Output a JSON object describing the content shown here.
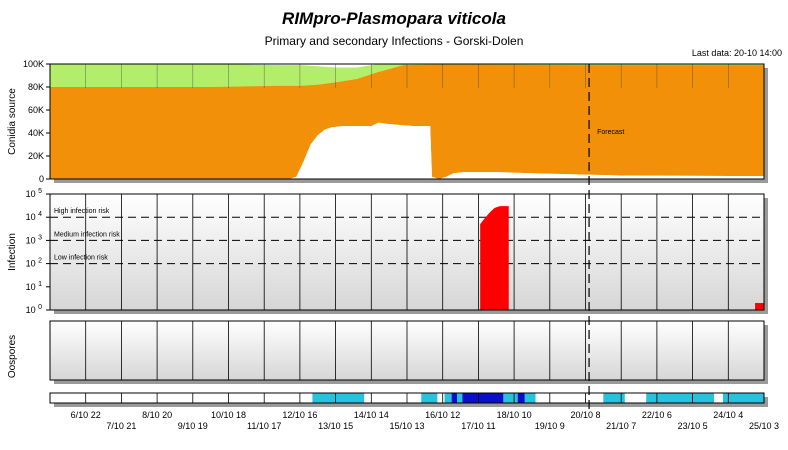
{
  "title": "RIMpro-Plasmopara viticola",
  "subtitle": "Primary and secondary Infections - Gorski-Dolen",
  "last_data": "Last data: 20-10 14:00",
  "forecast_label": "Forecast",
  "colors": {
    "uninfected": "#ffffff",
    "sporulating": "#f29109",
    "ripe": "#b3ee6a",
    "infection": "#ff0000",
    "leaf_wet_light": "#27c2dd",
    "leaf_wet_dark": "#0a0fcc"
  },
  "chart_data": [
    {
      "type": "area",
      "ylabel": "Conidia source",
      "ylim": [
        0,
        100000
      ],
      "yticks": [
        "0",
        "20K",
        "40K",
        "60K",
        "80K",
        "100K"
      ],
      "x_unit": "days from 6/10 00:00",
      "series": [
        {
          "name": "white",
          "points": [
            [
              0,
              0
            ],
            [
              4.5,
              0
            ],
            [
              6.4,
              0
            ],
            [
              6.7,
              0
            ],
            [
              6.9,
              2000
            ],
            [
              7.1,
              15000
            ],
            [
              7.3,
              30000
            ],
            [
              7.5,
              38000
            ],
            [
              7.7,
              43000
            ],
            [
              7.9,
              45000
            ],
            [
              8.2,
              46000
            ],
            [
              9.0,
              46000
            ],
            [
              9.2,
              49000
            ],
            [
              9.4,
              48000
            ],
            [
              9.8,
              47000
            ],
            [
              10.2,
              46000
            ],
            [
              10.5,
              46000
            ],
            [
              10.65,
              46000
            ],
            [
              10.7,
              2000
            ],
            [
              10.9,
              0
            ],
            [
              11.1,
              2000
            ],
            [
              11.3,
              5000
            ],
            [
              11.6,
              6000
            ],
            [
              12.5,
              6000
            ],
            [
              13.5,
              5000
            ],
            [
              14.7,
              4000
            ],
            [
              16,
              3000
            ],
            [
              20,
              2500
            ]
          ]
        },
        {
          "name": "orange",
          "points": [
            [
              0,
              80000
            ],
            [
              4.5,
              80000
            ],
            [
              6.4,
              81000
            ],
            [
              7.0,
              81000
            ],
            [
              7.5,
              82000
            ],
            [
              8.0,
              84000
            ],
            [
              8.6,
              87000
            ],
            [
              9.2,
              93000
            ],
            [
              9.9,
              99000
            ],
            [
              10.8,
              99500
            ],
            [
              12,
              99500
            ],
            [
              14.7,
              99000
            ],
            [
              16,
              99000
            ],
            [
              20,
              99000
            ]
          ]
        },
        {
          "name": "green",
          "points": [
            [
              0,
              100000
            ],
            [
              4.5,
              100000
            ],
            [
              6.4,
              99000
            ],
            [
              7.0,
              99000
            ],
            [
              7.5,
              98000
            ],
            [
              8.0,
              97000
            ],
            [
              8.6,
              97000
            ],
            [
              9.2,
              100000
            ],
            [
              20,
              100000
            ]
          ]
        }
      ]
    },
    {
      "type": "bar",
      "ylabel": "Infection",
      "y_scale": "log",
      "ylim": [
        1,
        100000
      ],
      "yticks": [
        "10^0",
        "10^1",
        "10^2",
        "10^3",
        "10^4",
        "10^5"
      ],
      "thresholds": [
        {
          "label": "High infection risk",
          "value": 10000
        },
        {
          "label": "Medium infection risk",
          "value": 1000
        },
        {
          "label": "Low infection risk",
          "value": 100
        }
      ],
      "events": [
        {
          "x_start": 12.05,
          "x_end": 12.85,
          "points": [
            [
              12.05,
              5000
            ],
            [
              12.15,
              8000
            ],
            [
              12.3,
              15000
            ],
            [
              12.45,
              25000
            ],
            [
              12.6,
              30000
            ],
            [
              12.85,
              30000
            ]
          ]
        },
        {
          "x_start": 19.75,
          "x_end": 20.0,
          "points": [
            [
              19.75,
              2
            ],
            [
              20.0,
              2
            ]
          ]
        }
      ]
    },
    {
      "type": "area",
      "ylabel": "Oospores",
      "series": []
    },
    {
      "type": "heatmap",
      "ylabel": "",
      "cells": [
        {
          "x_start": 7.35,
          "x_end": 8.8,
          "level": "light"
        },
        {
          "x_start": 10.4,
          "x_end": 10.85,
          "level": "light"
        },
        {
          "x_start": 11.05,
          "x_end": 11.25,
          "level": "light"
        },
        {
          "x_start": 11.25,
          "x_end": 11.4,
          "level": "dark"
        },
        {
          "x_start": 11.4,
          "x_end": 11.55,
          "level": "light"
        },
        {
          "x_start": 11.55,
          "x_end": 12.7,
          "level": "dark"
        },
        {
          "x_start": 12.7,
          "x_end": 13.1,
          "level": "light"
        },
        {
          "x_start": 13.1,
          "x_end": 13.3,
          "level": "dark"
        },
        {
          "x_start": 13.3,
          "x_end": 13.6,
          "level": "light"
        },
        {
          "x_start": 15.5,
          "x_end": 16.1,
          "level": "light"
        },
        {
          "x_start": 16.7,
          "x_end": 18.6,
          "level": "light"
        },
        {
          "x_start": 18.85,
          "x_end": 20.0,
          "level": "light"
        }
      ]
    }
  ],
  "x_axis": {
    "domain": [
      0,
      20
    ],
    "forecast_at": 15.1,
    "ticks_upper": [
      "6/10 22",
      "8/10 20",
      "10/10 18",
      "12/10 16",
      "14/10 14",
      "16/10 12",
      "18/10 10",
      "20/10 8",
      "22/10 6",
      "24/10 4"
    ],
    "ticks_lower": [
      "7/10 21",
      "9/10 19",
      "11/10 17",
      "13/10 15",
      "15/10 13",
      "17/10 11",
      "19/10 9",
      "21/10 7",
      "23/10 5",
      "25/10 3"
    ]
  }
}
